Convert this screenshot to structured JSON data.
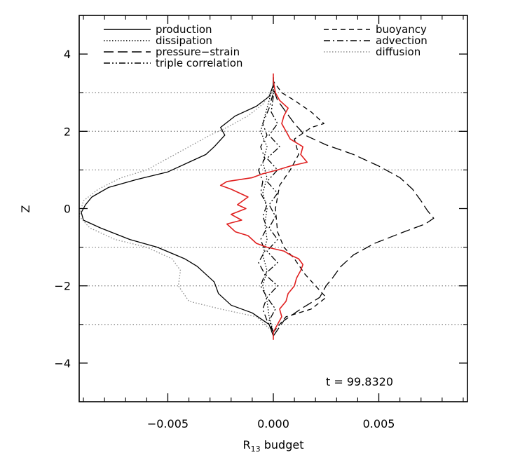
{
  "chart_data": {
    "type": "line",
    "title": "",
    "xlabel": "R",
    "xlabel_subscript": "13",
    "xlabel_suffix": " budget",
    "ylabel": "Z",
    "xlim": [
      -0.0092,
      0.0092
    ],
    "ylim": [
      -5,
      5
    ],
    "x_ticks": [
      -0.005,
      0.0,
      0.005
    ],
    "x_tick_labels": [
      "−0.005",
      "0.000",
      "0.005"
    ],
    "y_ticks": [
      -4,
      -2,
      0,
      2,
      4
    ],
    "y_tick_labels": [
      "−4",
      "−2",
      "0",
      "2",
      "4"
    ],
    "hgrid_levels": [
      -3,
      -2,
      -1,
      1,
      2,
      3
    ],
    "annotation": "t = 99.8320",
    "legend_left": [
      "production",
      "dissipation",
      "pressure−strain",
      "triple correlation"
    ],
    "legend_right": [
      "buoyancy",
      "advection",
      "diffusion"
    ],
    "series": [
      {
        "name": "production",
        "dash": "solid",
        "color": "#000000",
        "points": [
          [
            0,
            -3.3
          ],
          [
            -0.0002,
            -3.0
          ],
          [
            -0.001,
            -2.7
          ],
          [
            -0.002,
            -2.5
          ],
          [
            -0.0026,
            -2.2
          ],
          [
            -0.0028,
            -1.9
          ],
          [
            -0.0032,
            -1.7
          ],
          [
            -0.0036,
            -1.5
          ],
          [
            -0.0042,
            -1.3
          ],
          [
            -0.0055,
            -1.0
          ],
          [
            -0.0068,
            -0.8
          ],
          [
            -0.0082,
            -0.5
          ],
          [
            -0.009,
            -0.3
          ],
          [
            -0.0091,
            -0.1
          ],
          [
            -0.009,
            0.0
          ],
          [
            -0.0089,
            0.1
          ],
          [
            -0.0086,
            0.3
          ],
          [
            -0.0078,
            0.55
          ],
          [
            -0.0065,
            0.75
          ],
          [
            -0.005,
            0.95
          ],
          [
            -0.004,
            1.2
          ],
          [
            -0.0032,
            1.4
          ],
          [
            -0.0028,
            1.6
          ],
          [
            -0.0023,
            1.9
          ],
          [
            -0.0025,
            2.1
          ],
          [
            -0.0018,
            2.4
          ],
          [
            -0.0008,
            2.65
          ],
          [
            -0.0002,
            2.9
          ],
          [
            0,
            3.2
          ],
          [
            0,
            3.4
          ]
        ]
      },
      {
        "name": "dissipation",
        "dash": "dotted",
        "color": "#000000",
        "points": [
          [
            0,
            -3.2
          ],
          [
            -0.0002,
            -2.8
          ],
          [
            -0.0003,
            -2.4
          ],
          [
            -0.0005,
            -2.0
          ],
          [
            -0.0003,
            -1.6
          ],
          [
            -0.0005,
            -1.2
          ],
          [
            -0.0003,
            -0.8
          ],
          [
            -0.0004,
            -0.4
          ],
          [
            -0.0003,
            0.0
          ],
          [
            -0.0005,
            0.4
          ],
          [
            -0.0003,
            0.8
          ],
          [
            -0.0005,
            1.2
          ],
          [
            -0.0003,
            1.6
          ],
          [
            -0.0006,
            2.0
          ],
          [
            -0.0004,
            2.4
          ],
          [
            -0.0002,
            2.8
          ],
          [
            0,
            3.2
          ]
        ]
      },
      {
        "name": "pressure−strain",
        "dash": "longdash",
        "color": "#000000",
        "points": [
          [
            0,
            -3.3
          ],
          [
            0.0005,
            -2.9
          ],
          [
            0.0013,
            -2.6
          ],
          [
            0.0022,
            -2.3
          ],
          [
            0.0025,
            -2.0
          ],
          [
            0.0028,
            -1.8
          ],
          [
            0.0032,
            -1.5
          ],
          [
            0.0038,
            -1.2
          ],
          [
            0.0048,
            -0.9
          ],
          [
            0.0062,
            -0.6
          ],
          [
            0.0072,
            -0.4
          ],
          [
            0.0076,
            -0.25
          ],
          [
            0.0073,
            -0.05
          ],
          [
            0.007,
            0.2
          ],
          [
            0.0066,
            0.5
          ],
          [
            0.006,
            0.8
          ],
          [
            0.005,
            1.1
          ],
          [
            0.0038,
            1.4
          ],
          [
            0.0025,
            1.65
          ],
          [
            0.0015,
            1.9
          ],
          [
            0.001,
            2.2
          ],
          [
            0.0006,
            2.5
          ],
          [
            0.0002,
            2.8
          ],
          [
            0,
            3.1
          ],
          [
            0,
            3.4
          ]
        ]
      },
      {
        "name": "triple correlation",
        "dash": "dashdotdot",
        "color": "#000000",
        "points": [
          [
            0,
            -3.2
          ],
          [
            -0.0002,
            -2.9
          ],
          [
            0.0001,
            -2.6
          ],
          [
            -0.0003,
            -2.3
          ],
          [
            0.0002,
            -2.0
          ],
          [
            -0.0004,
            -1.7
          ],
          [
            0.0002,
            -1.4
          ],
          [
            -0.0003,
            -1.1
          ],
          [
            0.0002,
            -0.8
          ],
          [
            -0.0002,
            -0.5
          ],
          [
            0.0001,
            -0.2
          ],
          [
            -0.0002,
            0.1
          ],
          [
            0.0002,
            0.4
          ],
          [
            -0.0003,
            0.7
          ],
          [
            0.0002,
            1.0
          ],
          [
            -0.0003,
            1.3
          ],
          [
            0.0003,
            1.6
          ],
          [
            -0.0002,
            1.9
          ],
          [
            0.0002,
            2.2
          ],
          [
            -0.0001,
            2.5
          ],
          [
            0,
            2.9
          ],
          [
            0,
            3.2
          ]
        ]
      },
      {
        "name": "buoyancy",
        "dash": "dashed",
        "color": "#000000",
        "points": [
          [
            0,
            -3.2
          ],
          [
            0.0006,
            -2.8
          ],
          [
            0.0018,
            -2.6
          ],
          [
            0.0025,
            -2.3
          ],
          [
            0.002,
            -2.0
          ],
          [
            0.0015,
            -1.7
          ],
          [
            0.001,
            -1.3
          ],
          [
            0.0005,
            -1.0
          ],
          [
            0.0002,
            -0.6
          ],
          [
            0.0001,
            0.0
          ],
          [
            0.0003,
            0.6
          ],
          [
            0.0008,
            1.0
          ],
          [
            0.0012,
            1.4
          ],
          [
            0.001,
            1.8
          ],
          [
            0.0018,
            2.1
          ],
          [
            0.0024,
            2.2
          ],
          [
            0.0018,
            2.5
          ],
          [
            0.001,
            2.8
          ],
          [
            0.0004,
            3.0
          ],
          [
            0,
            3.3
          ]
        ]
      },
      {
        "name": "advection",
        "dash": "dashdot",
        "color": "#000000",
        "points": [
          [
            0,
            -3.2
          ],
          [
            -0.0003,
            -2.9
          ],
          [
            -0.0005,
            -2.6
          ],
          [
            -0.0003,
            -2.3
          ],
          [
            -0.0006,
            -2.0
          ],
          [
            -0.0004,
            -1.7
          ],
          [
            -0.0007,
            -1.4
          ],
          [
            -0.0004,
            -1.1
          ],
          [
            -0.0006,
            -0.8
          ],
          [
            -0.0003,
            -0.5
          ],
          [
            -0.0005,
            -0.2
          ],
          [
            -0.0003,
            0.1
          ],
          [
            -0.0006,
            0.4
          ],
          [
            -0.0005,
            0.7
          ],
          [
            -0.0007,
            1.0
          ],
          [
            -0.0004,
            1.3
          ],
          [
            -0.0006,
            1.6
          ],
          [
            -0.0003,
            1.9
          ],
          [
            -0.0005,
            2.2
          ],
          [
            -0.0002,
            2.6
          ],
          [
            0,
            3.0
          ],
          [
            0,
            3.3
          ]
        ]
      },
      {
        "name": "diffusion",
        "dash": "dotted",
        "color": "#8c8c8c",
        "points": [
          [
            0,
            -3.2
          ],
          [
            -0.0008,
            -2.8
          ],
          [
            -0.0025,
            -2.6
          ],
          [
            -0.004,
            -2.4
          ],
          [
            -0.0045,
            -2.0
          ],
          [
            -0.0044,
            -1.6
          ],
          [
            -0.0048,
            -1.3
          ],
          [
            -0.006,
            -1.0
          ],
          [
            -0.0075,
            -0.8
          ],
          [
            -0.0087,
            -0.5
          ],
          [
            -0.0092,
            -0.2
          ],
          [
            -0.0091,
            0.0
          ],
          [
            -0.009,
            0.2
          ],
          [
            -0.0083,
            0.5
          ],
          [
            -0.0072,
            0.8
          ],
          [
            -0.006,
            1.0
          ],
          [
            -0.005,
            1.3
          ],
          [
            -0.004,
            1.6
          ],
          [
            -0.003,
            1.9
          ],
          [
            -0.0022,
            2.1
          ],
          [
            -0.0012,
            2.4
          ],
          [
            -0.0005,
            2.7
          ],
          [
            0,
            3.1
          ]
        ]
      },
      {
        "name": "",
        "dash": "solid",
        "color": "#e02020",
        "points": [
          [
            0,
            -3.4
          ],
          [
            0,
            -3.2
          ],
          [
            0.0002,
            -3.0
          ],
          [
            0.0004,
            -2.8
          ],
          [
            0.0003,
            -2.6
          ],
          [
            0.0006,
            -2.4
          ],
          [
            0.0007,
            -2.2
          ],
          [
            0.001,
            -2.0
          ],
          [
            0.0011,
            -1.8
          ],
          [
            0.0013,
            -1.6
          ],
          [
            0.0014,
            -1.45
          ],
          [
            0.0012,
            -1.3
          ],
          [
            0.0008,
            -1.2
          ],
          [
            0.0005,
            -1.1
          ],
          [
            -0.0003,
            -1.0
          ],
          [
            -0.0008,
            -0.9
          ],
          [
            -0.0012,
            -0.7
          ],
          [
            -0.0018,
            -0.6
          ],
          [
            -0.0022,
            -0.4
          ],
          [
            -0.0015,
            -0.3
          ],
          [
            -0.002,
            -0.15
          ],
          [
            -0.0013,
            0.0
          ],
          [
            -0.0017,
            0.1
          ],
          [
            -0.0012,
            0.3
          ],
          [
            -0.002,
            0.5
          ],
          [
            -0.0025,
            0.6
          ],
          [
            -0.0022,
            0.7
          ],
          [
            -0.001,
            0.8
          ],
          [
            -0.0005,
            0.9
          ],
          [
            0.0002,
            1.0
          ],
          [
            0.0008,
            1.1
          ],
          [
            0.0016,
            1.2
          ],
          [
            0.0013,
            1.4
          ],
          [
            0.0014,
            1.6
          ],
          [
            0.0008,
            1.8
          ],
          [
            0.0006,
            2.0
          ],
          [
            0.0004,
            2.2
          ],
          [
            0.0005,
            2.4
          ],
          [
            0.0007,
            2.6
          ],
          [
            0.0003,
            2.8
          ],
          [
            0.0001,
            3.0
          ],
          [
            0,
            3.3
          ],
          [
            0,
            3.5
          ]
        ]
      }
    ]
  }
}
